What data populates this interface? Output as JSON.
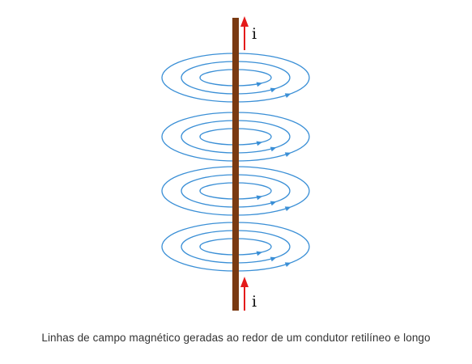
{
  "figure": {
    "current_label_top": "i",
    "current_label_bottom": "i",
    "colors": {
      "conductor": "#7a3a12",
      "field_lines": "#3a8fd6",
      "current_arrow": "#e41b1b"
    },
    "field_line_groups": 4,
    "loops_per_group": 3
  },
  "caption": "Linhas de campo magnético geradas ao redor de um condutor retilíneo e longo"
}
